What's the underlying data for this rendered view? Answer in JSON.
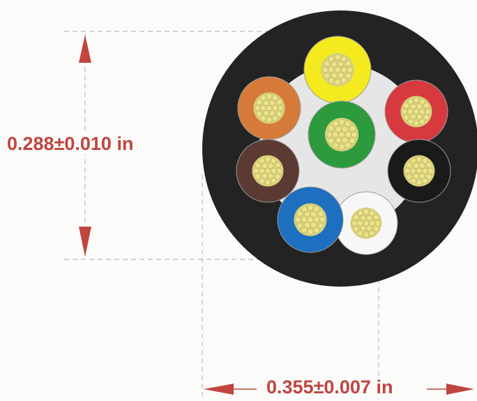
{
  "dimensions": {
    "height": "0.288±0.010 in",
    "width": "0.355±0.007 in"
  },
  "colors": {
    "dimension": "#c0453f",
    "jacket": "#232323",
    "filler": "#e6e6e6",
    "strand": "#ece48a"
  },
  "conductors": [
    {
      "color_name": "yellow",
      "color": "#f4ea1e"
    },
    {
      "color_name": "red",
      "color": "#d63a3f"
    },
    {
      "color_name": "black",
      "color": "#1a1a1a"
    },
    {
      "color_name": "white",
      "color": "#f7f7f7"
    },
    {
      "color_name": "blue",
      "color": "#1d6fbf"
    },
    {
      "color_name": "brown",
      "color": "#5a3a32"
    },
    {
      "color_name": "orange",
      "color": "#d67a3a"
    },
    {
      "color_name": "green",
      "color": "#2e9a3e"
    }
  ]
}
